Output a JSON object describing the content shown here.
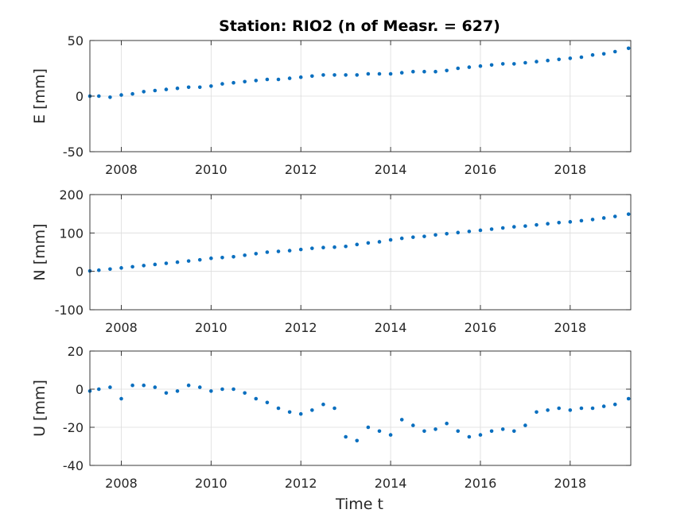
{
  "title": "Station: RIO2 (n of Measr. = 627)",
  "xlabel": "Time t",
  "marker_color": "#0a6fbf",
  "chart_data": [
    {
      "type": "scatter",
      "ylabel": "E [mm]",
      "xlim": [
        2007.3,
        2019.35
      ],
      "ylim": [
        -50,
        50
      ],
      "xticks": [
        2008,
        2010,
        2012,
        2014,
        2016,
        2018
      ],
      "yticks": [
        -50,
        0,
        50
      ],
      "grid": true,
      "x": [
        2007.3,
        2007.5,
        2007.75,
        2008.0,
        2008.25,
        2008.5,
        2008.75,
        2009.0,
        2009.25,
        2009.5,
        2009.75,
        2010.0,
        2010.25,
        2010.5,
        2010.75,
        2011.0,
        2011.25,
        2011.5,
        2011.75,
        2012.0,
        2012.25,
        2012.5,
        2012.75,
        2013.0,
        2013.25,
        2013.5,
        2013.75,
        2014.0,
        2014.25,
        2014.5,
        2014.75,
        2015.0,
        2015.25,
        2015.5,
        2015.75,
        2016.0,
        2016.25,
        2016.5,
        2016.75,
        2017.0,
        2017.25,
        2017.5,
        2017.75,
        2018.0,
        2018.25,
        2018.5,
        2018.75,
        2019.0,
        2019.3
      ],
      "values": [
        0,
        0,
        -1,
        1,
        2,
        4,
        5,
        6,
        7,
        8,
        8,
        9,
        11,
        12,
        13,
        14,
        15,
        15,
        16,
        17,
        18,
        19,
        19,
        19,
        19,
        20,
        20,
        20,
        21,
        22,
        22,
        22,
        23,
        25,
        26,
        27,
        28,
        29,
        29,
        30,
        31,
        32,
        33,
        34,
        35,
        37,
        38,
        40,
        43
      ]
    },
    {
      "type": "scatter",
      "ylabel": "N [mm]",
      "xlim": [
        2007.3,
        2019.35
      ],
      "ylim": [
        -100,
        200
      ],
      "xticks": [
        2008,
        2010,
        2012,
        2014,
        2016,
        2018
      ],
      "yticks": [
        -100,
        0,
        100,
        200
      ],
      "grid": true,
      "x": [
        2007.3,
        2007.5,
        2007.75,
        2008.0,
        2008.25,
        2008.5,
        2008.75,
        2009.0,
        2009.25,
        2009.5,
        2009.75,
        2010.0,
        2010.25,
        2010.5,
        2010.75,
        2011.0,
        2011.25,
        2011.5,
        2011.75,
        2012.0,
        2012.25,
        2012.5,
        2012.75,
        2013.0,
        2013.25,
        2013.5,
        2013.75,
        2014.0,
        2014.25,
        2014.5,
        2014.75,
        2015.0,
        2015.25,
        2015.5,
        2015.75,
        2016.0,
        2016.25,
        2016.5,
        2016.75,
        2017.0,
        2017.25,
        2017.5,
        2017.75,
        2018.0,
        2018.25,
        2018.5,
        2018.75,
        2019.0,
        2019.3
      ],
      "values": [
        1,
        3,
        6,
        9,
        12,
        15,
        18,
        21,
        24,
        27,
        30,
        34,
        36,
        38,
        42,
        46,
        50,
        52,
        54,
        57,
        60,
        62,
        63,
        65,
        70,
        74,
        77,
        82,
        86,
        89,
        91,
        95,
        98,
        101,
        104,
        107,
        110,
        113,
        116,
        118,
        121,
        124,
        127,
        129,
        132,
        135,
        139,
        143,
        149
      ]
    },
    {
      "type": "scatter",
      "ylabel": "U [mm]",
      "xlabel": "Time t",
      "xlim": [
        2007.3,
        2019.35
      ],
      "ylim": [
        -40,
        20
      ],
      "xticks": [
        2008,
        2010,
        2012,
        2014,
        2016,
        2018
      ],
      "yticks": [
        -40,
        -20,
        0,
        20
      ],
      "grid": true,
      "x": [
        2007.3,
        2007.5,
        2007.75,
        2008.0,
        2008.25,
        2008.5,
        2008.75,
        2009.0,
        2009.25,
        2009.5,
        2009.75,
        2010.0,
        2010.25,
        2010.5,
        2010.75,
        2011.0,
        2011.25,
        2011.5,
        2011.75,
        2012.0,
        2012.25,
        2012.5,
        2012.75,
        2013.0,
        2013.25,
        2013.5,
        2013.75,
        2014.0,
        2014.25,
        2014.5,
        2014.75,
        2015.0,
        2015.25,
        2015.5,
        2015.75,
        2016.0,
        2016.25,
        2016.5,
        2016.75,
        2017.0,
        2017.25,
        2017.5,
        2017.75,
        2018.0,
        2018.25,
        2018.5,
        2018.75,
        2019.0,
        2019.3
      ],
      "values": [
        -1,
        0,
        1,
        -5,
        2,
        2,
        1,
        -2,
        -1,
        2,
        1,
        -1,
        0,
        0,
        -2,
        -5,
        -7,
        -10,
        -12,
        -13,
        -11,
        -8,
        -10,
        -25,
        -27,
        -20,
        -22,
        -24,
        -16,
        -19,
        -22,
        -21,
        -18,
        -22,
        -25,
        -24,
        -22,
        -21,
        -22,
        -19,
        -12,
        -11,
        -10,
        -11,
        -10,
        -10,
        -9,
        -8,
        -5
      ]
    }
  ]
}
